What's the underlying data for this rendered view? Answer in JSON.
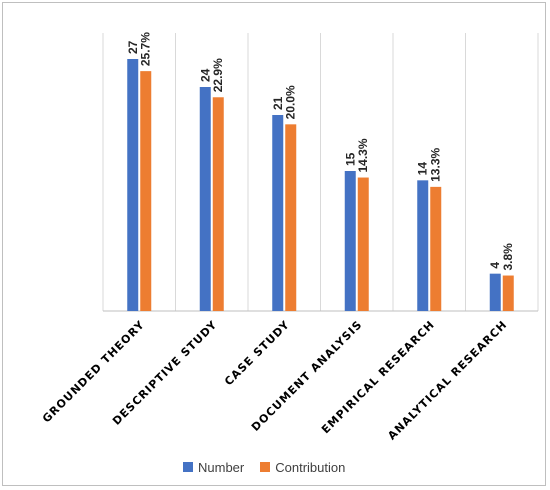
{
  "chart_data": {
    "type": "bar",
    "categories": [
      "GROUNDED THEORY",
      "DESCRIPTIVE STUDY",
      "CASE STUDY",
      "DOCUMENT ANALYSIS",
      "EMPIRICAL RESEARCH",
      "ANALYTICAL RESEARCH"
    ],
    "series": [
      {
        "name": "Number",
        "values": [
          27,
          24,
          21,
          15,
          14,
          4
        ],
        "labels": [
          "27",
          "24",
          "21",
          "15",
          "14",
          "4"
        ],
        "color": "#4472C4"
      },
      {
        "name": "Contribution",
        "values": [
          25.7,
          22.9,
          20.0,
          14.3,
          13.3,
          3.8
        ],
        "labels": [
          "25.7%",
          "22.9%",
          "20.0%",
          "14.3%",
          "13.3%",
          "3.8%"
        ],
        "color": "#ED7D31"
      }
    ],
    "ylim": [
      0,
      30
    ],
    "grid": "vertical category separators",
    "legend": "bottom"
  }
}
